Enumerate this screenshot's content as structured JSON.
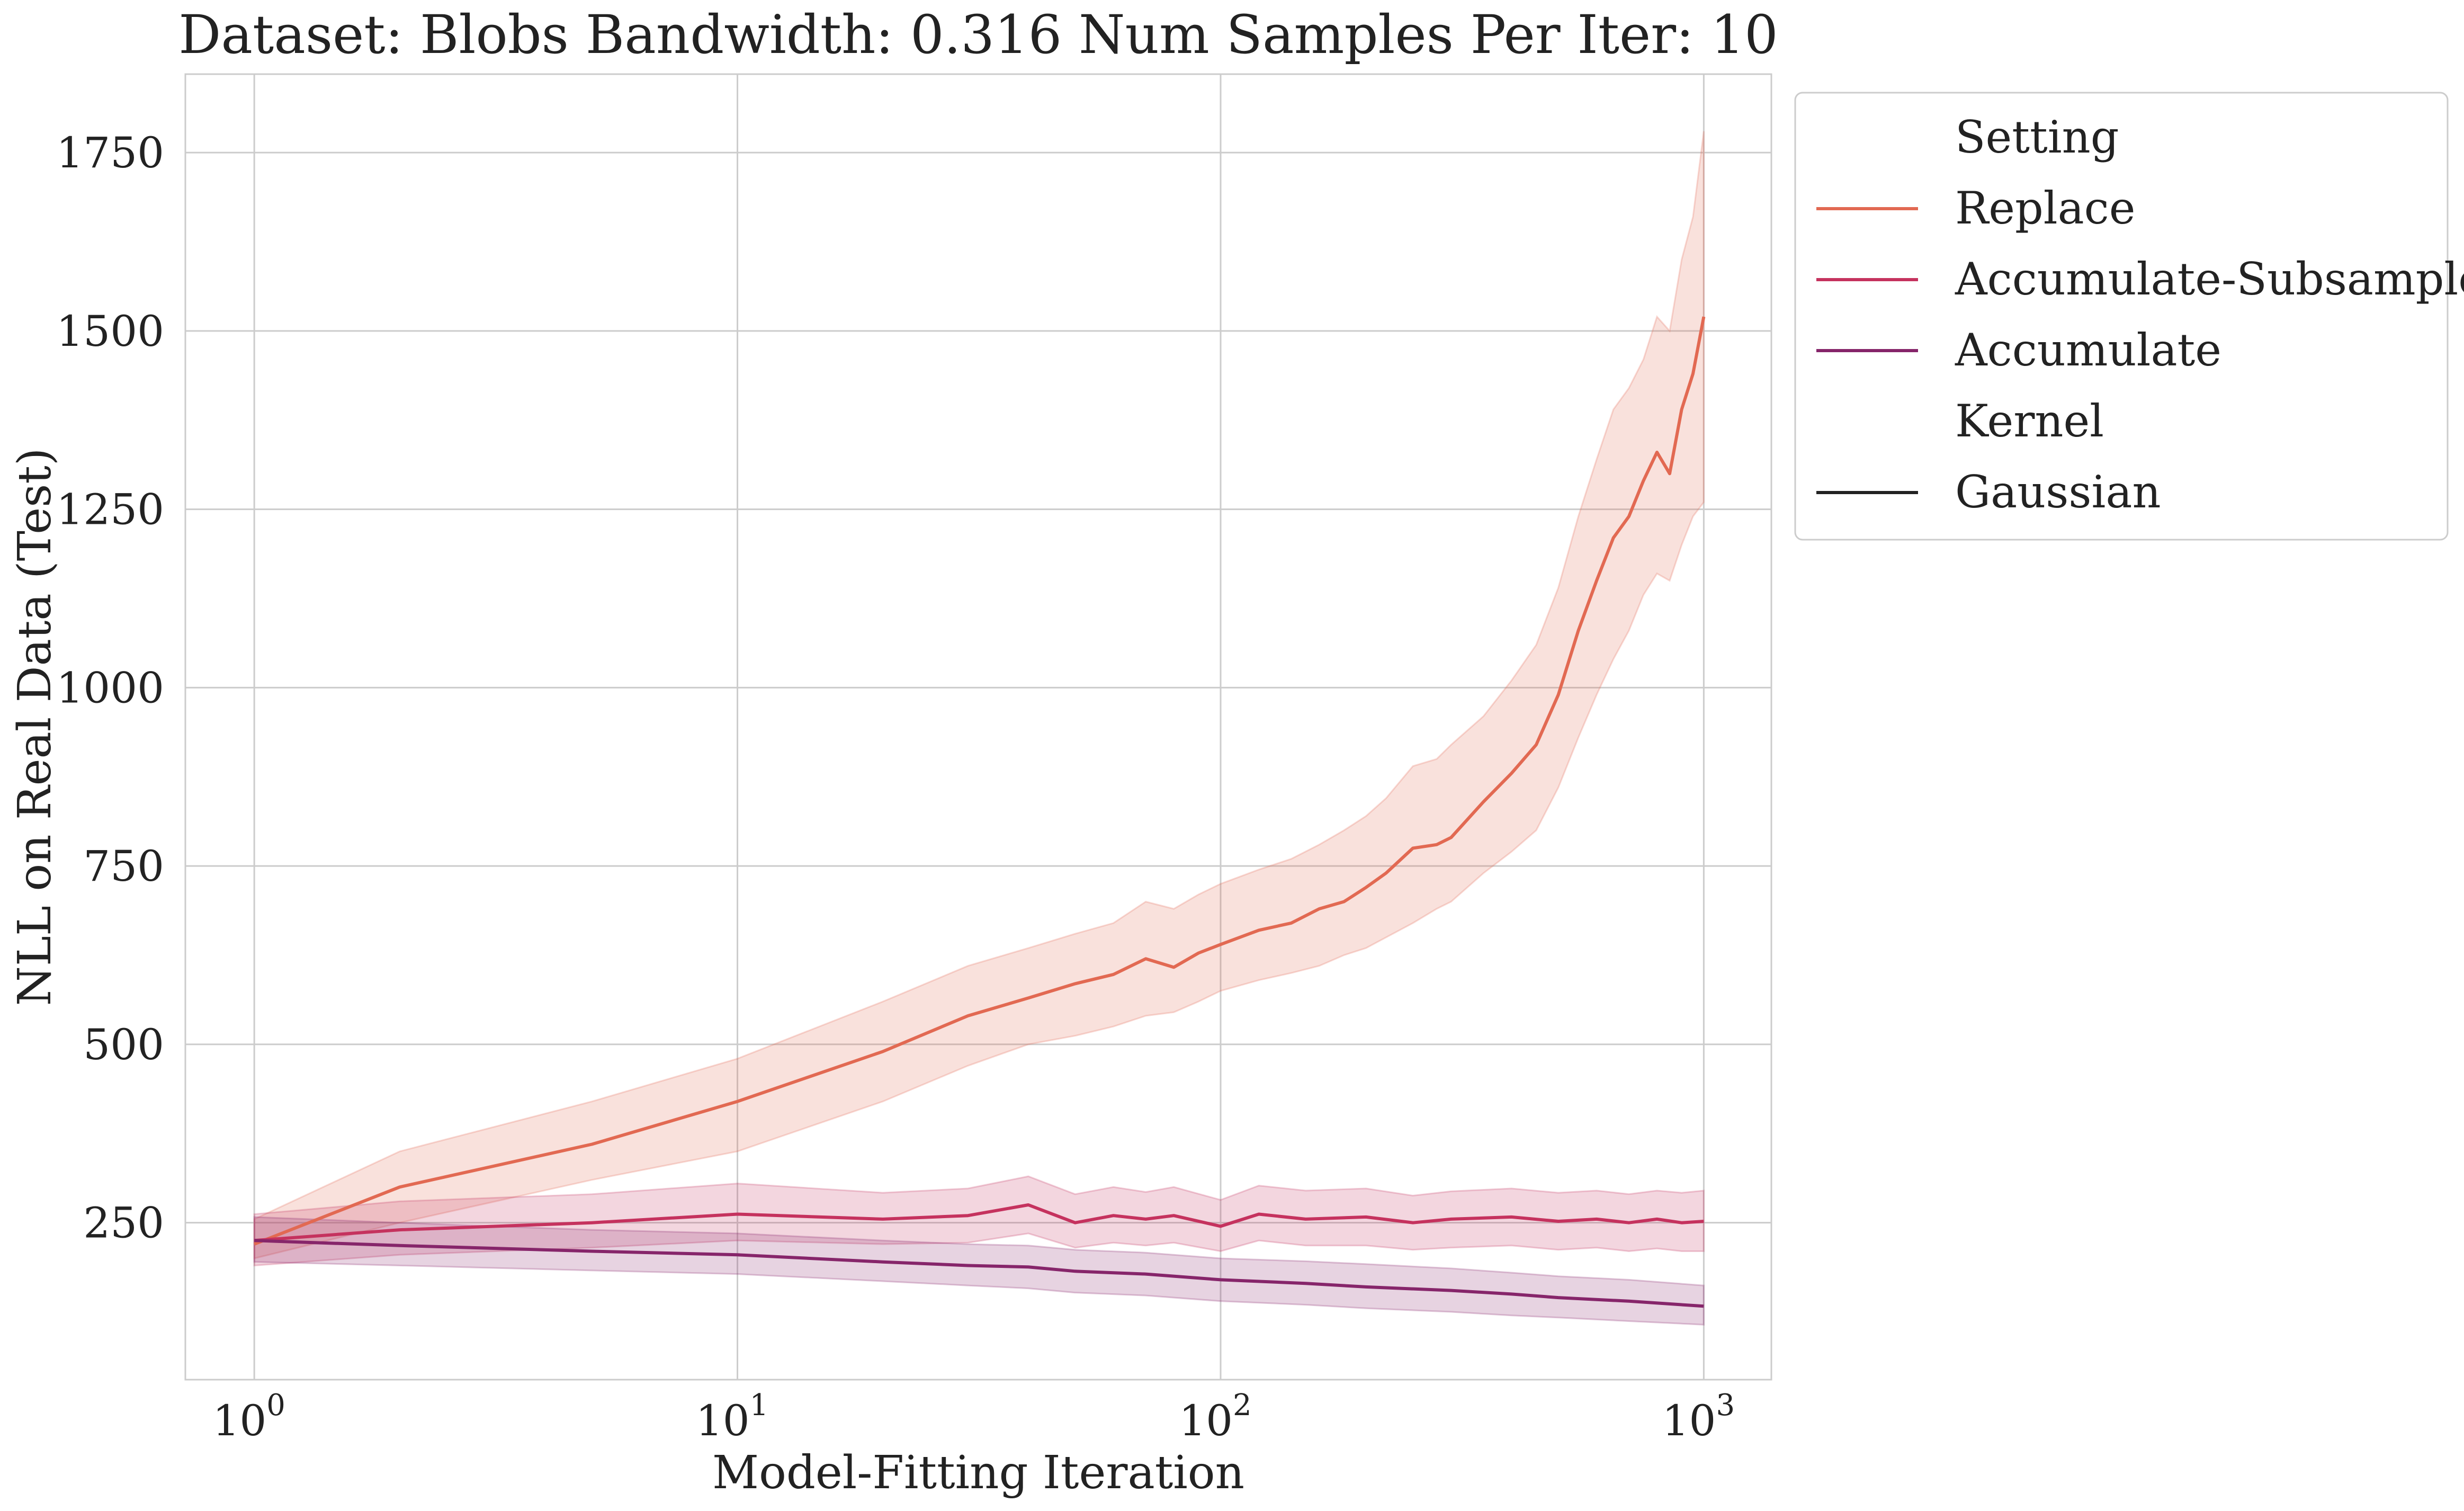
{
  "chart_data": {
    "type": "line",
    "title": "Dataset: Blobs Bandwidth: 0.316 Num Samples Per Iter: 10",
    "xlabel": "Model-Fitting Iteration",
    "ylabel": "NLL on Real Data (Test)",
    "x_scale": "log",
    "xlim": [
      0.72,
      1380
    ],
    "ylim": [
      30,
      1860
    ],
    "x_ticks": [
      {
        "value": 1,
        "label": "10",
        "exp": "0"
      },
      {
        "value": 10,
        "label": "10",
        "exp": "1"
      },
      {
        "value": 100,
        "label": "10",
        "exp": "2"
      },
      {
        "value": 1000,
        "label": "10",
        "exp": "3"
      }
    ],
    "y_ticks": [
      250,
      500,
      750,
      1000,
      1250,
      1500,
      1750
    ],
    "grid": true,
    "legend": {
      "placement": "outside-top-right",
      "entries": [
        {
          "label": "Setting",
          "kind": "header"
        },
        {
          "label": "Replace",
          "kind": "line",
          "color": "#e26952"
        },
        {
          "label": "Accumulate-Subsample",
          "kind": "line",
          "color": "#c5325e"
        },
        {
          "label": "Accumulate",
          "kind": "line",
          "color": "#86256a"
        },
        {
          "label": "Kernel",
          "kind": "header"
        },
        {
          "label": "Gaussian",
          "kind": "line",
          "color": "#222222"
        }
      ]
    },
    "series": [
      {
        "name": "Replace",
        "color": "#e26952",
        "x": [
          1,
          2,
          5,
          10,
          20,
          30,
          40,
          50,
          60,
          70,
          80,
          90,
          100,
          120,
          140,
          160,
          180,
          200,
          220,
          250,
          280,
          300,
          350,
          400,
          450,
          500,
          550,
          600,
          650,
          700,
          750,
          800,
          850,
          900,
          950,
          1000
        ],
        "y": [
          220,
          300,
          360,
          420,
          490,
          540,
          565,
          585,
          598,
          620,
          608,
          628,
          640,
          660,
          670,
          690,
          700,
          720,
          740,
          775,
          780,
          790,
          840,
          880,
          920,
          990,
          1080,
          1150,
          1210,
          1240,
          1290,
          1330,
          1300,
          1390,
          1440,
          1520
        ],
        "lower": [
          200,
          250,
          310,
          350,
          420,
          470,
          500,
          512,
          525,
          540,
          545,
          560,
          575,
          590,
          600,
          610,
          625,
          635,
          650,
          670,
          690,
          700,
          740,
          770,
          800,
          860,
          930,
          990,
          1040,
          1080,
          1130,
          1160,
          1150,
          1200,
          1240,
          1260
        ],
        "upper": [
          255,
          350,
          420,
          480,
          560,
          610,
          635,
          655,
          670,
          700,
          690,
          710,
          725,
          745,
          760,
          780,
          800,
          820,
          845,
          890,
          900,
          920,
          960,
          1010,
          1060,
          1140,
          1240,
          1320,
          1390,
          1420,
          1460,
          1520,
          1500,
          1600,
          1660,
          1780
        ]
      },
      {
        "name": "Accumulate-Subsample",
        "color": "#c5325e",
        "x": [
          1,
          2,
          5,
          10,
          20,
          30,
          40,
          50,
          60,
          70,
          80,
          100,
          120,
          150,
          200,
          250,
          300,
          400,
          500,
          600,
          700,
          800,
          900,
          1000
        ],
        "y": [
          225,
          240,
          250,
          262,
          255,
          260,
          275,
          250,
          260,
          255,
          260,
          245,
          262,
          255,
          258,
          250,
          255,
          258,
          252,
          255,
          250,
          255,
          250,
          252
        ],
        "lower": [
          190,
          205,
          215,
          225,
          220,
          222,
          235,
          215,
          222,
          218,
          222,
          210,
          225,
          218,
          218,
          212,
          215,
          218,
          212,
          215,
          210,
          214,
          210,
          210
        ],
        "upper": [
          262,
          280,
          290,
          305,
          292,
          298,
          315,
          290,
          300,
          293,
          300,
          282,
          302,
          295,
          298,
          288,
          294,
          298,
          292,
          295,
          290,
          295,
          292,
          295
        ]
      },
      {
        "name": "Accumulate",
        "color": "#86256a",
        "x": [
          1,
          2,
          5,
          10,
          20,
          30,
          40,
          50,
          70,
          100,
          150,
          200,
          300,
          400,
          500,
          700,
          1000
        ],
        "y": [
          225,
          218,
          210,
          205,
          195,
          190,
          188,
          182,
          178,
          170,
          165,
          160,
          155,
          150,
          145,
          140,
          133
        ],
        "lower": [
          195,
          190,
          183,
          178,
          168,
          162,
          158,
          152,
          148,
          140,
          135,
          130,
          125,
          120,
          117,
          112,
          107
        ],
        "upper": [
          258,
          250,
          240,
          235,
          225,
          220,
          218,
          212,
          208,
          200,
          196,
          192,
          186,
          180,
          175,
          170,
          162
        ]
      }
    ]
  }
}
